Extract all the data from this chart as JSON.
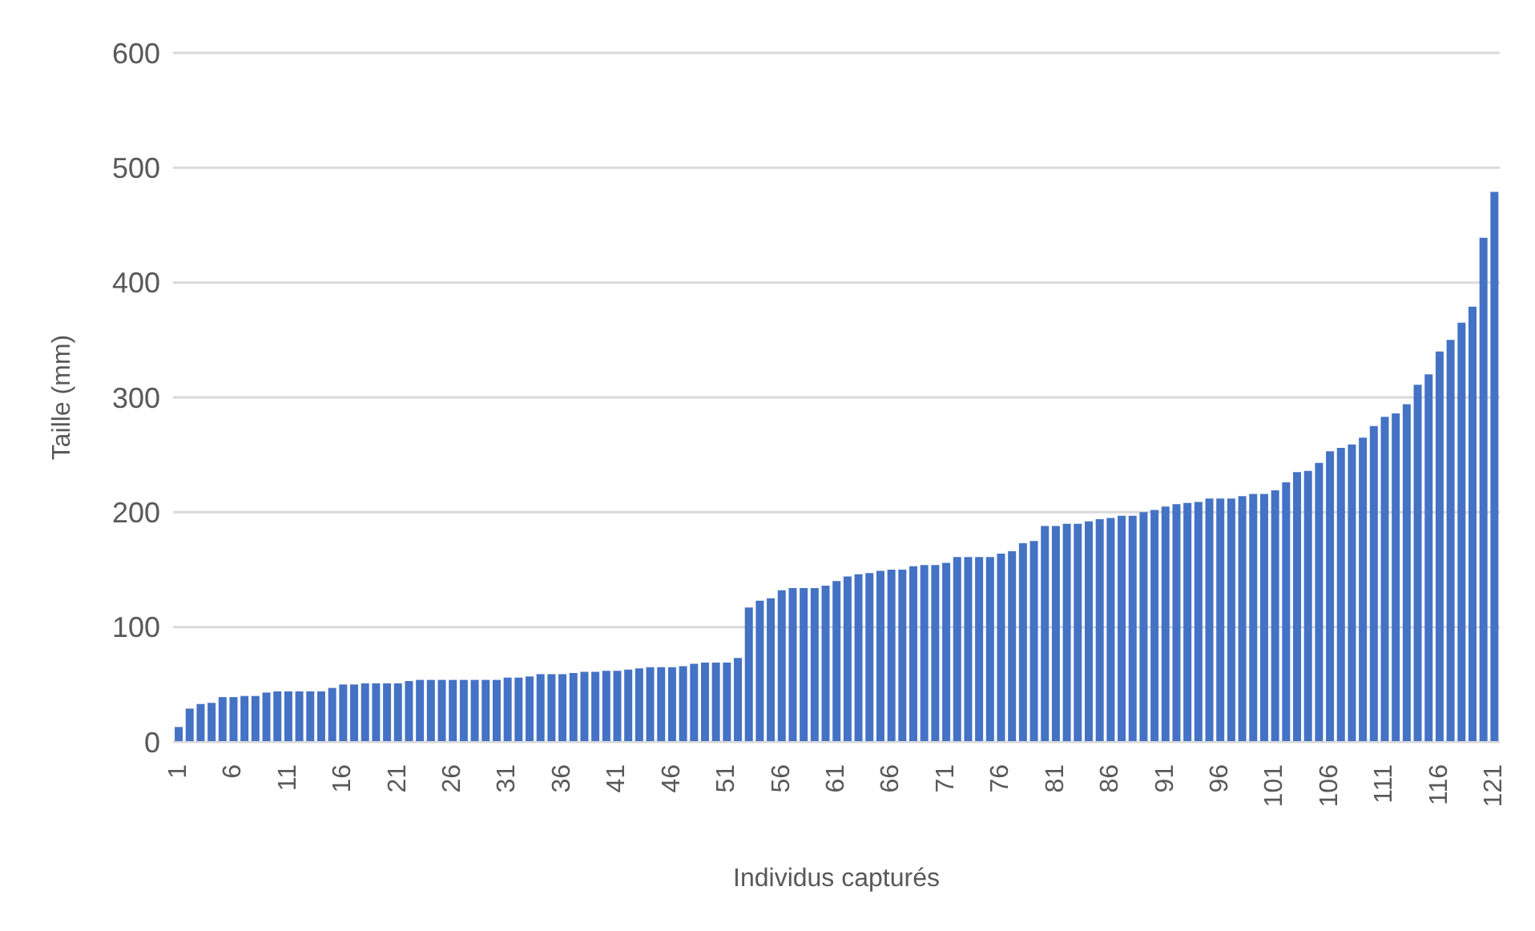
{
  "chart_data": {
    "type": "bar",
    "xlabel": "Individus capturés",
    "ylabel": "Taille (mm)",
    "categories": [
      "1",
      null,
      null,
      null,
      null,
      "6",
      null,
      null,
      null,
      null,
      "11",
      null,
      null,
      null,
      null,
      "16",
      null,
      null,
      null,
      null,
      "21",
      null,
      null,
      null,
      null,
      "26",
      null,
      null,
      null,
      null,
      "31",
      null,
      null,
      null,
      null,
      "36",
      null,
      null,
      null,
      null,
      "41",
      null,
      null,
      null,
      null,
      "46",
      null,
      null,
      null,
      null,
      "51",
      null,
      null,
      null,
      null,
      "56",
      null,
      null,
      null,
      null,
      "61",
      null,
      null,
      null,
      null,
      "66",
      null,
      null,
      null,
      null,
      "71",
      null,
      null,
      null,
      null,
      "76",
      null,
      null,
      null,
      null,
      "81",
      null,
      null,
      null,
      null,
      "86",
      null,
      null,
      null,
      null,
      "91",
      null,
      null,
      null,
      null,
      "96",
      null,
      null,
      null,
      null,
      "101",
      null,
      null,
      null,
      null,
      "106",
      null,
      null,
      null,
      null,
      "111",
      null,
      null,
      null,
      null,
      "116",
      null,
      null,
      null,
      null,
      "121"
    ],
    "values": [
      13,
      29,
      33,
      34,
      39,
      39,
      40,
      40,
      43,
      44,
      44,
      44,
      44,
      44,
      47,
      50,
      50,
      51,
      51,
      51,
      51,
      53,
      54,
      54,
      54,
      54,
      54,
      54,
      54,
      54,
      56,
      56,
      57,
      59,
      59,
      59,
      60,
      61,
      61,
      62,
      62,
      63,
      64,
      65,
      65,
      65,
      66,
      68,
      69,
      69,
      69,
      73,
      117,
      123,
      125,
      132,
      134,
      134,
      134,
      136,
      140,
      144,
      146,
      147,
      149,
      150,
      150,
      153,
      154,
      154,
      156,
      161,
      161,
      161,
      161,
      164,
      166,
      173,
      175,
      188,
      188,
      190,
      190,
      192,
      194,
      195,
      197,
      197,
      200,
      202,
      205,
      207,
      208,
      209,
      212,
      212,
      212,
      214,
      216,
      216,
      219,
      226,
      235,
      236,
      243,
      253,
      256,
      259,
      265,
      275,
      283,
      286,
      294,
      311,
      320,
      340,
      350,
      365,
      379,
      439,
      479
    ],
    "color": "#4472c4",
    "ylim": [
      0,
      600
    ],
    "yticks": [
      0,
      100,
      200,
      300,
      400,
      500,
      600
    ],
    "grid": "y"
  }
}
